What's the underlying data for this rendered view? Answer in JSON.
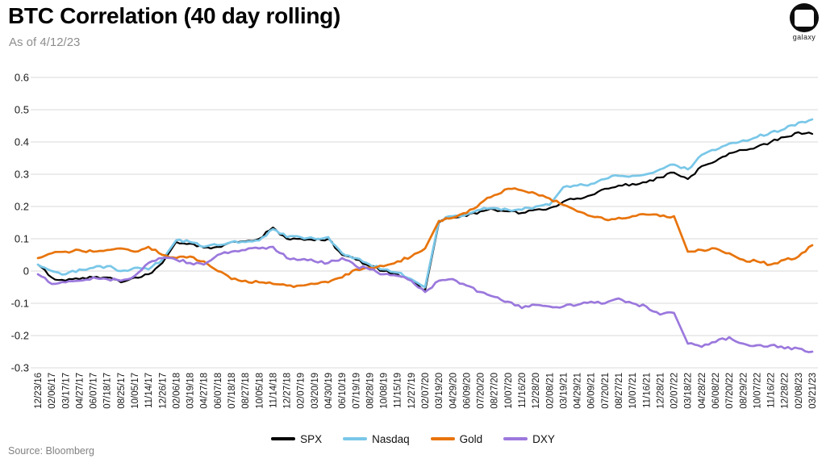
{
  "header": {
    "title": "BTC Correlation (40 day rolling)",
    "subtitle": "As of 4/12/23",
    "logo_text": "galaxy"
  },
  "footer": {
    "source": "Source: Bloomberg"
  },
  "colors": {
    "spx": "#000000",
    "nasdaq": "#79C7E8",
    "gold": "#E8740C",
    "dxy": "#9B78DD",
    "gridline": "#d9d9d9",
    "tick_text": "#1a1a1a",
    "subtitle_text": "#8e8e8e"
  },
  "chart_data": {
    "type": "line",
    "title": "BTC Correlation (40 day rolling)",
    "as_of": "As of 4/12/23",
    "xlabel": "",
    "ylabel": "",
    "ylim": [
      -0.3,
      0.6
    ],
    "grid": "horizontal",
    "legend_position": "bottom-center",
    "yticks": [
      {
        "label": "0.6",
        "value": 0.6
      },
      {
        "label": "0.5",
        "value": 0.5
      },
      {
        "label": "0.4",
        "value": 0.4
      },
      {
        "label": "0.3",
        "value": 0.3
      },
      {
        "label": "0.2",
        "value": 0.2
      },
      {
        "label": "0.1",
        "value": 0.1
      },
      {
        "label": "0",
        "value": 0.0
      },
      {
        "label": "-0.1",
        "value": -0.1
      },
      {
        "label": "-0.2",
        "value": -0.2
      },
      {
        "label": "-0.3",
        "value": -0.3
      }
    ],
    "categories": [
      "12/23/16",
      "02/06/17",
      "03/17/17",
      "04/27/17",
      "06/07/17",
      "07/18/17",
      "08/25/17",
      "10/05/17",
      "11/14/17",
      "12/26/17",
      "02/06/18",
      "03/19/18",
      "04/27/18",
      "06/07/18",
      "07/18/18",
      "08/27/18",
      "10/05/18",
      "11/14/18",
      "12/27/18",
      "02/07/19",
      "03/20/19",
      "04/30/19",
      "06/10/19",
      "07/19/19",
      "08/28/19",
      "10/08/19",
      "11/15/19",
      "12/27/19",
      "02/07/20",
      "03/19/20",
      "04/29/20",
      "06/09/20",
      "07/20/20",
      "08/27/20",
      "10/07/20",
      "11/16/20",
      "12/28/20",
      "02/08/21",
      "03/19/21",
      "04/29/21",
      "06/09/21",
      "07/20/21",
      "08/27/21",
      "10/07/21",
      "11/16/21",
      "12/28/21",
      "02/07/22",
      "03/18/22",
      "04/28/22",
      "06/08/22",
      "07/20/22",
      "08/29/22",
      "10/07/22",
      "11/16/22",
      "12/28/22",
      "02/08/23",
      "03/21/23"
    ],
    "series": [
      {
        "name": "SPX",
        "color": "#000000",
        "values": [
          0.02,
          -0.02,
          -0.03,
          -0.025,
          -0.02,
          -0.02,
          -0.035,
          -0.02,
          -0.01,
          0.025,
          0.09,
          0.085,
          0.072,
          0.075,
          0.09,
          0.092,
          0.1,
          0.135,
          0.1,
          0.1,
          0.095,
          0.1,
          0.05,
          0.035,
          0.015,
          0.0,
          -0.01,
          -0.03,
          -0.06,
          0.15,
          0.165,
          0.17,
          0.185,
          0.19,
          0.185,
          0.18,
          0.19,
          0.195,
          0.215,
          0.225,
          0.235,
          0.255,
          0.265,
          0.27,
          0.275,
          0.29,
          0.305,
          0.285,
          0.325,
          0.34,
          0.365,
          0.375,
          0.385,
          0.4,
          0.415,
          0.43,
          0.425
        ]
      },
      {
        "name": "Nasdaq",
        "color": "#79C7E8",
        "values": [
          0.02,
          0.0,
          -0.01,
          0.005,
          0.01,
          0.015,
          0.0,
          0.01,
          0.005,
          0.035,
          0.095,
          0.09,
          0.075,
          0.08,
          0.09,
          0.09,
          0.095,
          0.13,
          0.105,
          0.105,
          0.1,
          0.105,
          0.055,
          0.04,
          0.02,
          0.005,
          -0.005,
          -0.025,
          -0.05,
          0.155,
          0.17,
          0.175,
          0.19,
          0.195,
          0.19,
          0.19,
          0.2,
          0.205,
          0.26,
          0.265,
          0.27,
          0.285,
          0.295,
          0.295,
          0.3,
          0.315,
          0.33,
          0.315,
          0.36,
          0.375,
          0.395,
          0.405,
          0.415,
          0.43,
          0.44,
          0.46,
          0.47
        ]
      },
      {
        "name": "Gold",
        "color": "#E8740C",
        "values": [
          0.04,
          0.055,
          0.06,
          0.065,
          0.06,
          0.065,
          0.07,
          0.06,
          0.075,
          0.05,
          0.04,
          0.045,
          0.03,
          0.0,
          -0.025,
          -0.03,
          -0.035,
          -0.04,
          -0.045,
          -0.045,
          -0.04,
          -0.035,
          -0.02,
          0.005,
          0.01,
          0.015,
          0.03,
          0.045,
          0.07,
          0.155,
          0.165,
          0.18,
          0.21,
          0.235,
          0.255,
          0.25,
          0.24,
          0.225,
          0.205,
          0.185,
          0.17,
          0.16,
          0.165,
          0.17,
          0.175,
          0.17,
          0.17,
          0.06,
          0.065,
          0.07,
          0.055,
          0.035,
          0.03,
          0.02,
          0.035,
          0.045,
          0.08
        ]
      },
      {
        "name": "DXY",
        "color": "#9B78DD",
        "values": [
          -0.01,
          -0.04,
          -0.035,
          -0.03,
          -0.02,
          -0.025,
          -0.03,
          -0.015,
          0.025,
          0.04,
          0.035,
          0.025,
          0.02,
          0.05,
          0.06,
          0.065,
          0.07,
          0.075,
          0.04,
          0.035,
          0.03,
          0.025,
          0.04,
          0.015,
          0.005,
          -0.01,
          -0.015,
          -0.03,
          -0.065,
          -0.03,
          -0.025,
          -0.045,
          -0.065,
          -0.08,
          -0.095,
          -0.115,
          -0.105,
          -0.11,
          -0.11,
          -0.105,
          -0.095,
          -0.1,
          -0.085,
          -0.1,
          -0.11,
          -0.135,
          -0.13,
          -0.225,
          -0.235,
          -0.22,
          -0.205,
          -0.225,
          -0.23,
          -0.23,
          -0.24,
          -0.24,
          -0.25
        ]
      }
    ]
  }
}
